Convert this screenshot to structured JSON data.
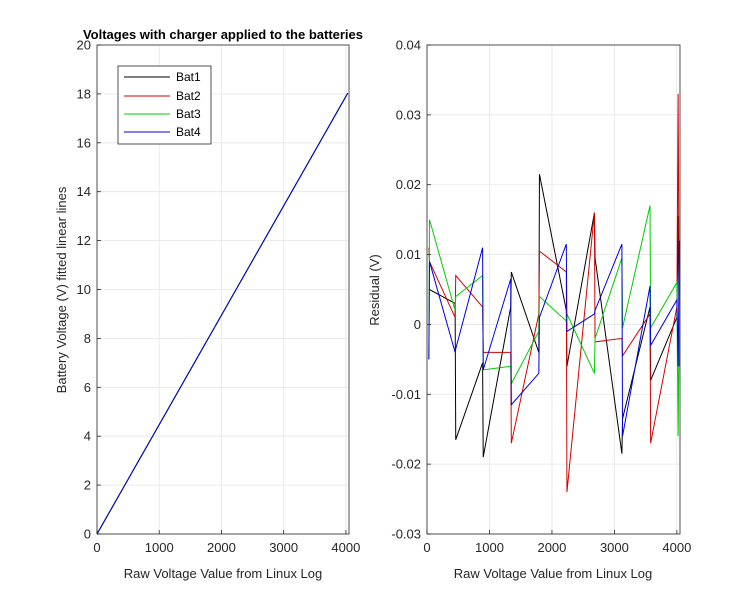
{
  "chart_data": [
    {
      "type": "line",
      "title": "Voltages with charger applied to the batteries",
      "xlabel": "Raw Voltage Value from Linux Log",
      "ylabel": "Battery Voltage (V) fitted linear lines",
      "xlim": [
        0,
        4050
      ],
      "ylim": [
        0,
        20
      ],
      "xticks": [
        "0",
        "1000",
        "2000",
        "3000",
        "4000"
      ],
      "yticks": [
        "0",
        "2",
        "4",
        "6",
        "8",
        "10",
        "12",
        "14",
        "16",
        "18",
        "20"
      ],
      "grid": true,
      "legend": "top-left",
      "series": [
        {
          "name": "Bat1",
          "color": "#000000",
          "x": [
            0,
            4030
          ],
          "y": [
            0,
            18.03
          ]
        },
        {
          "name": "Bat2",
          "color": "#d40000",
          "x": [
            0,
            4030
          ],
          "y": [
            0,
            18.03
          ]
        },
        {
          "name": "Bat3",
          "color": "#00cc00",
          "x": [
            0,
            4030
          ],
          "y": [
            0,
            18.03
          ]
        },
        {
          "name": "Bat4",
          "color": "#0000dd",
          "x": [
            0,
            4030
          ],
          "y": [
            0,
            18.03
          ]
        }
      ]
    },
    {
      "type": "line",
      "title": "",
      "xlabel": "Raw Voltage Value from Linux Log",
      "ylabel": "Residual (V)",
      "xlim": [
        0,
        4050
      ],
      "ylim": [
        -0.03,
        0.04
      ],
      "xticks": [
        "0",
        "1000",
        "2000",
        "3000",
        "4000"
      ],
      "yticks": [
        "-0.03",
        "-0.02",
        "-0.01",
        "0",
        "0.01",
        "0.02",
        "0.03",
        "0.04"
      ],
      "grid": true,
      "series": [
        {
          "name": "Bat1",
          "color": "#000000",
          "x": [
            30,
            40,
            450,
            460,
            890,
            900,
            1340,
            1350,
            1790,
            1800,
            2230,
            2240,
            2680,
            2690,
            3120,
            3130,
            3570,
            3580,
            4000,
            4020,
            4040
          ],
          "y": [
            0.005,
            0.005,
            0.003,
            -0.0165,
            -0.0055,
            -0.019,
            0.0025,
            0.0075,
            -0.004,
            0.0215,
            0.002,
            -0.006,
            0.016,
            0.0095,
            -0.0185,
            -0.0135,
            0.0025,
            -0.008,
            0.001,
            0.0155,
            -0.003
          ]
        },
        {
          "name": "Bat2",
          "color": "#d40000",
          "x": [
            30,
            40,
            450,
            460,
            890,
            900,
            1340,
            1350,
            1790,
            1800,
            2230,
            2240,
            2680,
            2690,
            3120,
            3130,
            3570,
            3580,
            4000,
            4020,
            4040
          ],
          "y": [
            0.011,
            0.009,
            0.001,
            0.007,
            0.0025,
            -0.004,
            -0.004,
            -0.017,
            0.0015,
            0.0105,
            0.0075,
            -0.024,
            0.016,
            -0.0025,
            -0.002,
            -0.0045,
            0.0015,
            -0.017,
            0.0025,
            0.033,
            -0.006
          ]
        },
        {
          "name": "Bat3",
          "color": "#00cc00",
          "x": [
            30,
            40,
            450,
            460,
            890,
            900,
            1340,
            1350,
            1790,
            1800,
            2230,
            2240,
            2680,
            2690,
            3120,
            3130,
            3570,
            3580,
            4000,
            4020,
            4040
          ],
          "y": [
            -0.005,
            0.015,
            0.002,
            0.004,
            0.007,
            -0.0065,
            -0.006,
            -0.0085,
            -0.001,
            0.004,
            0.0005,
            0.0015,
            -0.007,
            -0.002,
            0.0095,
            -0.0005,
            0.017,
            -0.0005,
            0.006,
            -0.016,
            0.0045
          ]
        },
        {
          "name": "Bat4",
          "color": "#0000dd",
          "x": [
            30,
            40,
            450,
            460,
            890,
            900,
            1340,
            1350,
            1790,
            1800,
            2230,
            2240,
            2680,
            2690,
            3120,
            3130,
            3570,
            3580,
            4000,
            4020,
            4040
          ],
          "y": [
            -0.005,
            0.009,
            -0.004,
            -0.0035,
            0.011,
            -0.0065,
            0.0065,
            -0.0115,
            -0.007,
            0.001,
            0.0115,
            -0.001,
            0.0015,
            0.002,
            0.0115,
            -0.016,
            0.0055,
            -0.003,
            0.0035,
            -0.006,
            0.012
          ]
        }
      ]
    }
  ]
}
